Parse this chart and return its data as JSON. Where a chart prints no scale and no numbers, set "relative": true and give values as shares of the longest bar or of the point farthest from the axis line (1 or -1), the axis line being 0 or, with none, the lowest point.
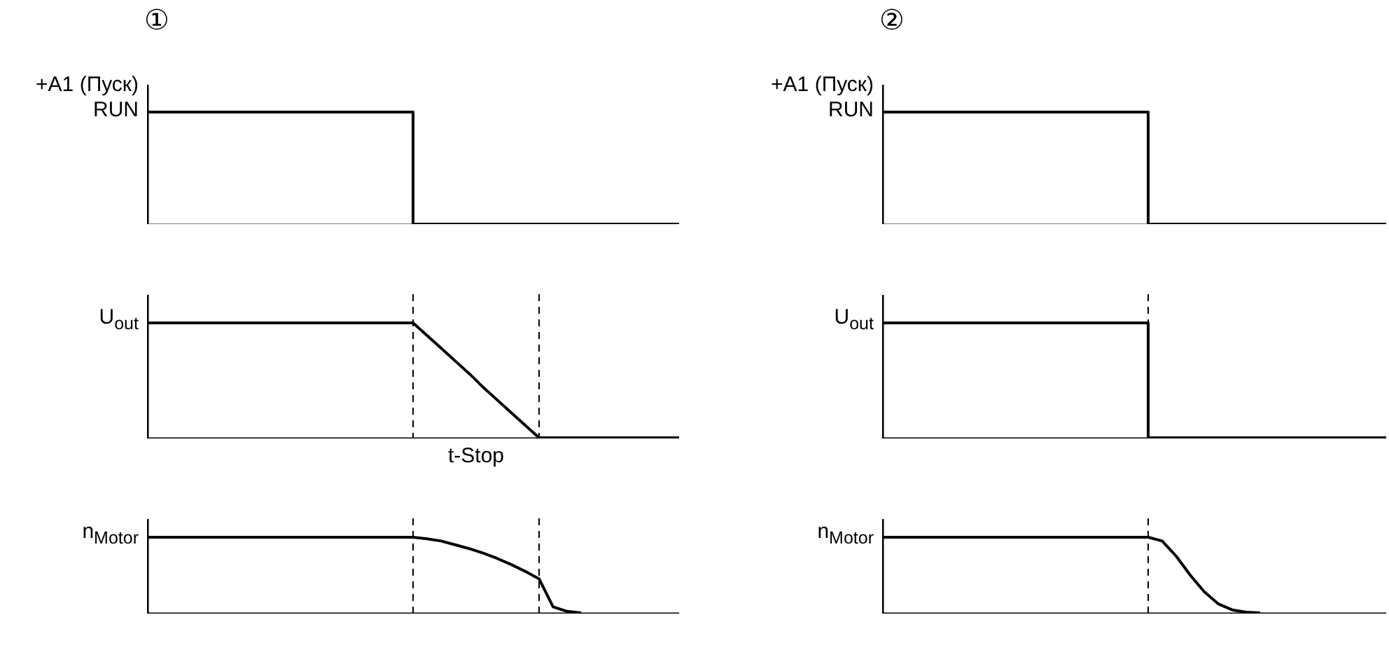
{
  "chart_data": [
    {
      "type": "step",
      "title": "①",
      "ylabel": "+A1 (Пуск)\nRUN",
      "relative": true,
      "categories": [
        null,
        null,
        null,
        null,
        null,
        null,
        null,
        null,
        null,
        null,
        null,
        null,
        null,
        null,
        null,
        null,
        null,
        null,
        null,
        null,
        null,
        null,
        null,
        null,
        null,
        null,
        null,
        null,
        null,
        null,
        null,
        null,
        null,
        null,
        null,
        null,
        null,
        null,
        null
      ],
      "series": [
        {
          "color": "#000000",
          "values": [
            1,
            1,
            1,
            1,
            1,
            1,
            1,
            1,
            1,
            1,
            1,
            1,
            1,
            1,
            1,
            1,
            1,
            1,
            1,
            0,
            0,
            0,
            0,
            0,
            0,
            0,
            0,
            0,
            0,
            0,
            0,
            0,
            0,
            0,
            0,
            0,
            0,
            0,
            0
          ]
        }
      ]
    },
    {
      "type": "line",
      "ylabel": "U$_{out}$",
      "relative": true,
      "categories": [
        null,
        null,
        null,
        null,
        null,
        null,
        null,
        null,
        null,
        null,
        null,
        null,
        null,
        null,
        null,
        null,
        null,
        null,
        null,
        null,
        null,
        null,
        null,
        null,
        null,
        null,
        null,
        null,
        null,
        null,
        null,
        null,
        null,
        null,
        null,
        null,
        null,
        null,
        null
      ],
      "series": [
        {
          "color": "#000000",
          "values": [
            1,
            1,
            1,
            1,
            1,
            1,
            1,
            1,
            1,
            1,
            1,
            1,
            1,
            1,
            1,
            1,
            1,
            1,
            1,
            1,
            0.89,
            0.78,
            0.67,
            0.56,
            0.44,
            0.33,
            0.22,
            0.11,
            0,
            0,
            0,
            0,
            0,
            0,
            0,
            0,
            0,
            0,
            0
          ]
        }
      ],
      "annotations": [
        "t-Stop"
      ]
    },
    {
      "type": "line",
      "ylabel": "n$_{Motor}$",
      "relative": true,
      "categories": [
        null,
        null,
        null,
        null,
        null,
        null,
        null,
        null,
        null,
        null,
        null,
        null,
        null,
        null,
        null,
        null,
        null,
        null,
        null,
        null,
        null,
        null,
        null,
        null,
        null,
        null,
        null,
        null,
        null,
        null,
        null,
        null,
        null,
        null,
        null,
        null,
        null,
        null,
        null
      ],
      "series": [
        {
          "color": "#000000",
          "values": [
            1,
            1,
            1,
            1,
            1,
            1,
            1,
            1,
            1,
            1,
            1,
            1,
            1,
            1,
            1,
            1,
            1,
            1,
            1,
            1,
            0.98,
            0.95,
            0.9,
            0.85,
            0.79,
            0.72,
            0.64,
            0.55,
            0.45,
            0.08,
            0.02,
            0,
            null,
            null,
            null,
            null,
            null,
            null,
            null
          ]
        }
      ]
    },
    {
      "type": "step",
      "title": "②",
      "ylabel": "+A1 (Пуск)\nRUN",
      "relative": true,
      "categories": [
        null,
        null,
        null,
        null,
        null,
        null,
        null,
        null,
        null,
        null,
        null,
        null,
        null,
        null,
        null,
        null,
        null,
        null,
        null,
        null,
        null,
        null,
        null,
        null,
        null,
        null,
        null,
        null,
        null,
        null,
        null,
        null,
        null,
        null,
        null,
        null,
        null
      ],
      "series": [
        {
          "color": "#000000",
          "values": [
            1,
            1,
            1,
            1,
            1,
            1,
            1,
            1,
            1,
            1,
            1,
            1,
            1,
            1,
            1,
            1,
            1,
            1,
            1,
            0,
            0,
            0,
            0,
            0,
            0,
            0,
            0,
            0,
            0,
            0,
            0,
            0,
            0,
            0,
            0,
            0,
            0
          ]
        }
      ]
    },
    {
      "type": "step",
      "ylabel": "U$_{out}$",
      "relative": true,
      "categories": [
        null,
        null,
        null,
        null,
        null,
        null,
        null,
        null,
        null,
        null,
        null,
        null,
        null,
        null,
        null,
        null,
        null,
        null,
        null,
        null,
        null,
        null,
        null,
        null,
        null,
        null,
        null,
        null,
        null,
        null,
        null,
        null,
        null,
        null,
        null,
        null,
        null
      ],
      "series": [
        {
          "color": "#000000",
          "values": [
            1,
            1,
            1,
            1,
            1,
            1,
            1,
            1,
            1,
            1,
            1,
            1,
            1,
            1,
            1,
            1,
            1,
            1,
            1,
            0,
            0,
            0,
            0,
            0,
            0,
            0,
            0,
            0,
            0,
            0,
            0,
            0,
            0,
            0,
            0,
            0,
            0
          ]
        }
      ]
    },
    {
      "type": "line",
      "ylabel": "n$_{Motor}$",
      "relative": true,
      "categories": [
        null,
        null,
        null,
        null,
        null,
        null,
        null,
        null,
        null,
        null,
        null,
        null,
        null,
        null,
        null,
        null,
        null,
        null,
        null,
        null,
        null,
        null,
        null,
        null,
        null,
        null,
        null,
        null,
        null,
        null,
        null,
        null,
        null,
        null,
        null,
        null,
        null
      ],
      "series": [
        {
          "color": "#000000",
          "values": [
            1,
            1,
            1,
            1,
            1,
            1,
            1,
            1,
            1,
            1,
            1,
            1,
            1,
            1,
            1,
            1,
            1,
            1,
            1,
            1,
            0.95,
            0.75,
            0.5,
            0.28,
            0.12,
            0.04,
            0.01,
            0,
            null,
            null,
            null,
            null,
            null,
            null,
            null,
            null,
            null
          ]
        }
      ]
    }
  ]
}
